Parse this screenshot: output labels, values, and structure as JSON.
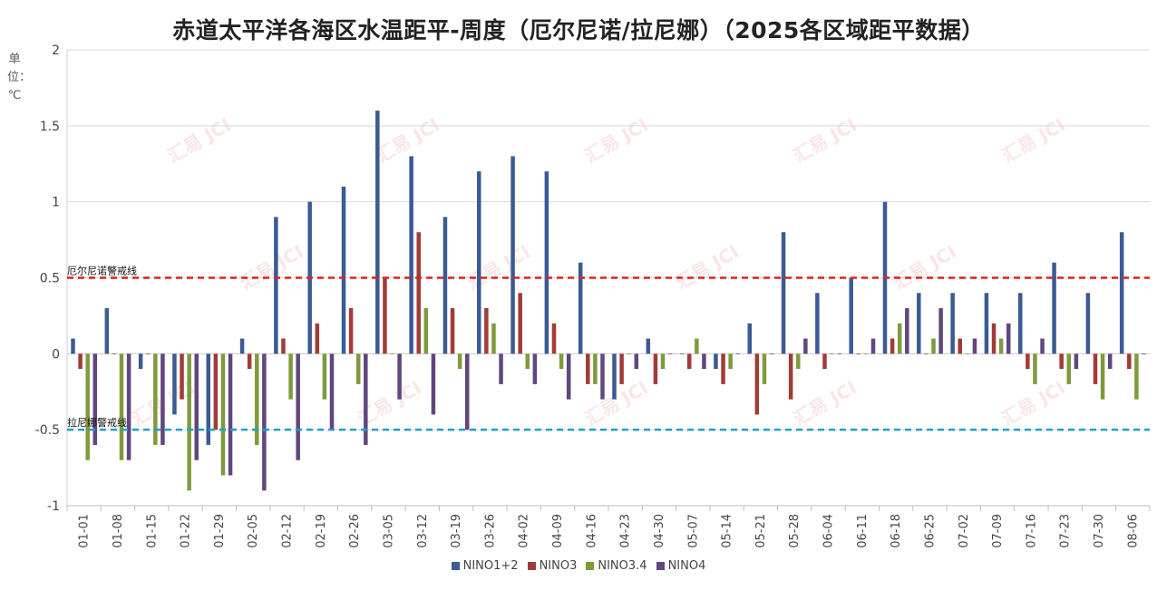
{
  "title": "赤道太平洋各海区水温距平-周度（厄尔尼诺/拉尼娜）（2025各区域距平数据）",
  "unit": "单位：℃",
  "colors": {
    "NINO1+2": "#3a5b94",
    "NINO3": "#a23b37",
    "NINO3.4": "#7f9a3c",
    "NINO4": "#62467f",
    "elnino_line": "#e02020",
    "lanina_line": "#1ea0c8"
  },
  "watermark": "汇易 JCI",
  "chart_data": {
    "type": "bar",
    "title": "赤道太平洋各海区水温距平-周度（厄尔尼诺/拉尼娜）（2025各区域距平数据）",
    "ylabel": "单位：℃",
    "xlabel": "",
    "ylim": [
      -1,
      2
    ],
    "yticks": [
      -1,
      -0.5,
      0,
      0.5,
      1,
      1.5,
      2
    ],
    "grid": true,
    "legend_position": "bottom",
    "categories": [
      "01-01",
      "01-08",
      "01-15",
      "01-22",
      "01-29",
      "02-05",
      "02-12",
      "02-19",
      "02-26",
      "03-05",
      "03-12",
      "03-19",
      "03-26",
      "04-02",
      "04-09",
      "04-16",
      "04-23",
      "04-30",
      "05-07",
      "05-14",
      "05-21",
      "05-28",
      "06-04",
      "06-11",
      "06-18",
      "06-25",
      "07-02",
      "07-09",
      "07-16",
      "07-23",
      "07-30",
      "08-06"
    ],
    "series": [
      {
        "name": "NINO1+2",
        "values": [
          0.1,
          0.3,
          -0.1,
          -0.4,
          -0.6,
          0.1,
          0.9,
          1.0,
          1.1,
          1.6,
          1.3,
          0.9,
          1.2,
          1.3,
          1.2,
          0.6,
          -0.3,
          0.1,
          0.0,
          -0.1,
          0.2,
          0.8,
          0.4,
          0.5,
          1.0,
          0.4,
          0.4,
          0.4,
          0.4,
          0.6,
          0.4,
          0.8
        ]
      },
      {
        "name": "NINO3",
        "values": [
          -0.1,
          0.0,
          0.0,
          -0.3,
          -0.5,
          -0.1,
          0.1,
          0.2,
          0.3,
          0.5,
          0.8,
          0.3,
          0.3,
          0.4,
          0.2,
          -0.2,
          -0.2,
          -0.2,
          -0.1,
          -0.2,
          -0.4,
          -0.3,
          -0.1,
          0.0,
          0.1,
          0.0,
          0.1,
          0.2,
          -0.1,
          -0.1,
          -0.2,
          -0.1
        ]
      },
      {
        "name": "NINO3.4",
        "values": [
          -0.7,
          -0.7,
          -0.6,
          -0.9,
          -0.8,
          -0.6,
          -0.3,
          -0.3,
          -0.2,
          0.0,
          0.3,
          -0.1,
          0.2,
          -0.1,
          -0.1,
          -0.2,
          0.0,
          -0.1,
          0.1,
          -0.1,
          -0.2,
          -0.1,
          0.0,
          0.0,
          0.2,
          0.1,
          0.0,
          0.1,
          -0.2,
          -0.2,
          -0.3,
          -0.3
        ]
      },
      {
        "name": "NINO4",
        "values": [
          -0.6,
          -0.7,
          -0.6,
          -0.7,
          -0.8,
          -0.9,
          -0.7,
          -0.5,
          -0.6,
          -0.3,
          -0.4,
          -0.5,
          -0.2,
          -0.2,
          -0.3,
          -0.3,
          -0.1,
          0.0,
          -0.1,
          0.0,
          0.0,
          0.1,
          0.0,
          0.1,
          0.3,
          0.3,
          0.1,
          0.2,
          0.1,
          -0.1,
          -0.1,
          0.0
        ]
      }
    ],
    "reference_lines": [
      {
        "label": "厄尔尼诺警戒线",
        "value": 0.5
      },
      {
        "label": "拉尼娜警戒线",
        "value": -0.5
      }
    ]
  }
}
